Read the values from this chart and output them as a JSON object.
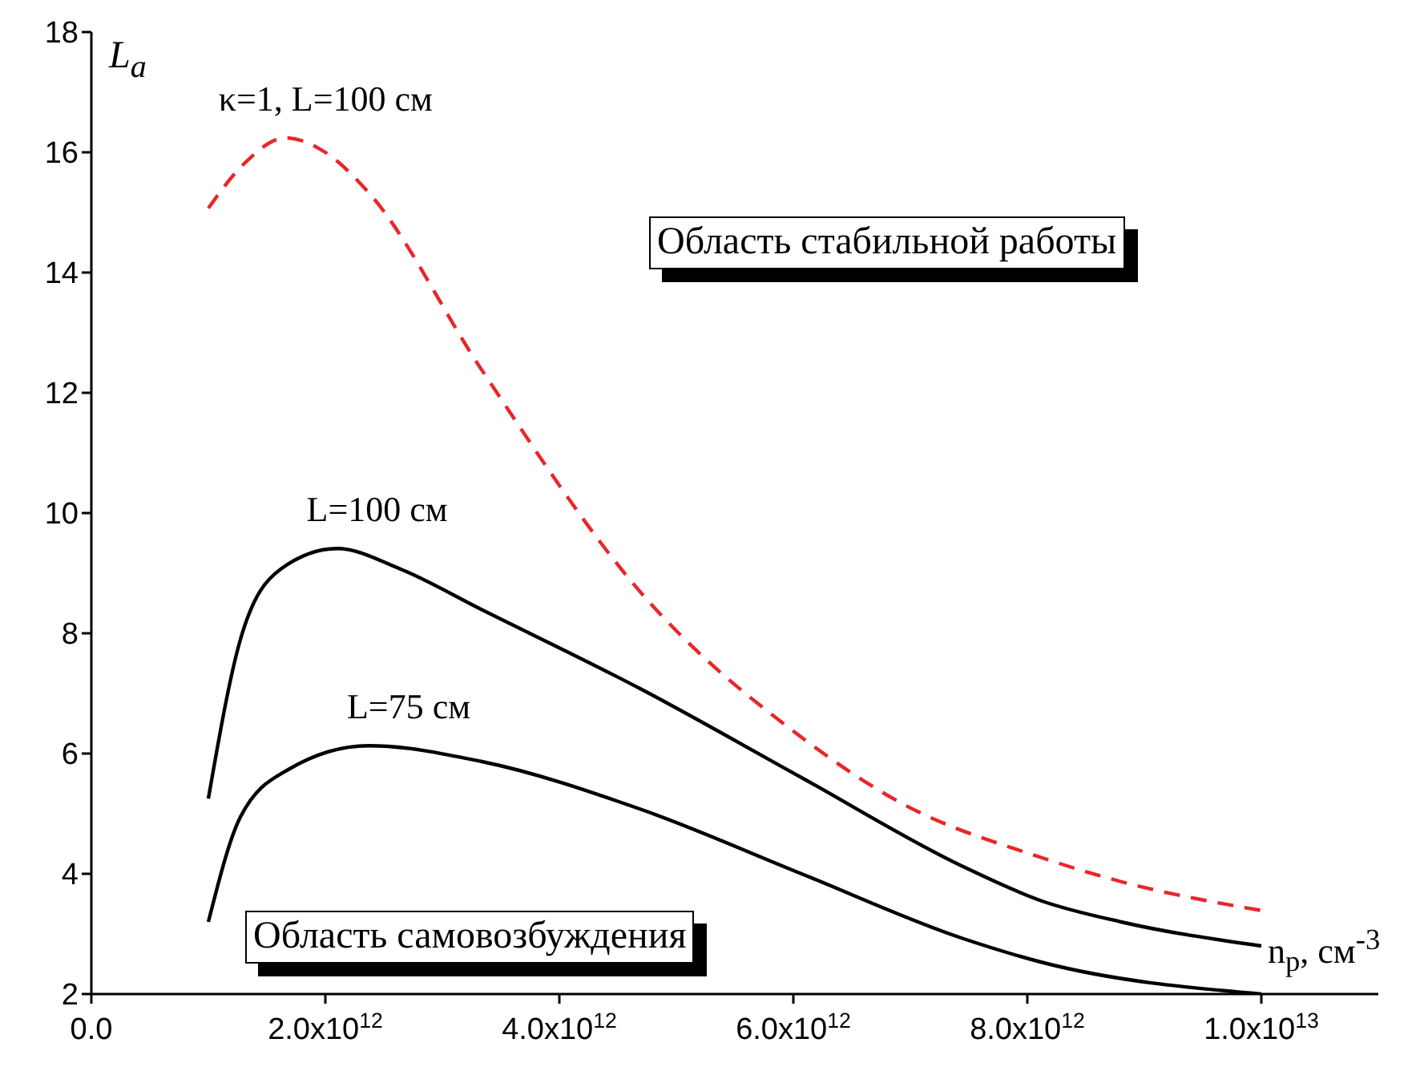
{
  "chart_data": {
    "type": "line",
    "xlabel": "n$_{p}$, см$^{-3}$",
    "ylabel": "L$_{a}$",
    "xlim": [
      0,
      11000000000000
    ],
    "xticks": [
      {
        "value": 0,
        "label": "0.0"
      },
      {
        "value": 2000000000000,
        "label": "2.0x10$^{12}$"
      },
      {
        "value": 4000000000000,
        "label": "4.0x10$^{12}$"
      },
      {
        "value": 6000000000000,
        "label": "6.0x10$^{12}$"
      },
      {
        "value": 8000000000000,
        "label": "8.0x10$^{12}$"
      },
      {
        "value": 10000000000000,
        "label": "1.0x10$^{13}$"
      }
    ],
    "ylim": [
      2,
      18
    ],
    "yticks": [
      2,
      4,
      6,
      8,
      10,
      12,
      14,
      16,
      18
    ],
    "marker": "none",
    "series": [
      {
        "name": "κ=1, L=100 см",
        "color": "#e8262a",
        "line_style": "dashed",
        "x": [
          1000000000000,
          1300000000000,
          1660000000000,
          2000000000000,
          2370000000000,
          3330000000000,
          4700000000000,
          6070000000000,
          6900000000000,
          8120000000000,
          8800000000000,
          10000000000000
        ],
        "values": [
          15.07,
          15.8,
          16.24,
          16.0,
          15.33,
          12.4,
          8.67,
          6.27,
          5.2,
          4.27,
          3.87,
          3.39
        ]
      },
      {
        "name": "L=100 см",
        "color": "#000000",
        "line_style": "solid",
        "x": [
          1000000000000,
          1270000000000,
          1620000000000,
          2100000000000,
          2640000000000,
          3330000000000,
          4700000000000,
          6070000000000,
          7440000000000,
          8120000000000,
          8800000000000,
          10000000000000
        ],
        "values": [
          5.25,
          7.87,
          9.07,
          9.41,
          9.07,
          8.4,
          7.07,
          5.6,
          4.13,
          3.55,
          3.2,
          2.8
        ]
      },
      {
        "name": "L=75 см",
        "color": "#000000",
        "line_style": "solid",
        "x": [
          1000000000000,
          1270000000000,
          1680000000000,
          2370000000000,
          3330000000000,
          4700000000000,
          6070000000000,
          7440000000000,
          8120000000000,
          10000000000000
        ],
        "values": [
          3.2,
          4.93,
          5.73,
          6.13,
          5.87,
          5.07,
          4.0,
          2.93,
          2.53,
          2.0
        ]
      }
    ],
    "annotations": [
      "Область стабильной работы",
      "Область самовозбуждения"
    ]
  }
}
